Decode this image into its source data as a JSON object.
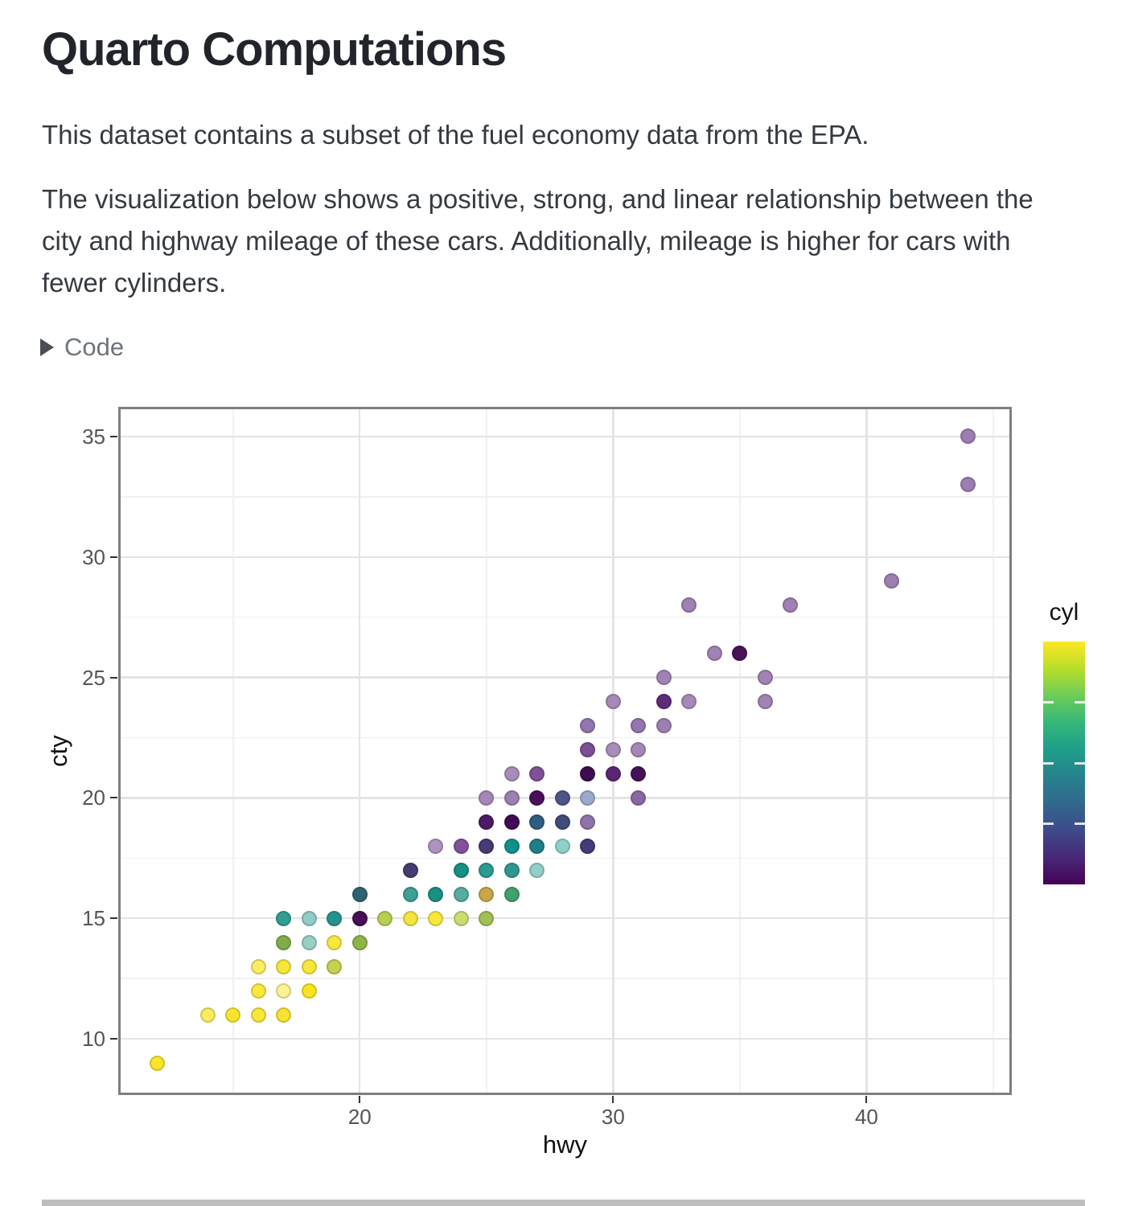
{
  "page": {
    "title": "Quarto Computations",
    "paragraph1": "This dataset contains a subset of the fuel economy data from the EPA.",
    "paragraph1_lines": [
      "This dataset contains a subset of the fuel economy data from the EPA."
    ],
    "paragraph2": "The visualization below shows a positive, strong, and linear relationship between the city and highway mileage of these cars. Additionally, mileage is higher for cars with fewer cylinders.",
    "paragraph2_lines": [
      "The visualization below shows a positive, strong, and linear relationship between the",
      "city and highway mileage of these cars. Additionally, mileage is higher for cars with",
      "fewer cylinders."
    ],
    "code_toggle": {
      "label": "Code",
      "state": "collapsed",
      "icon": "caret-right-icon"
    }
  },
  "colors": {
    "panel_border": "#7F7F7F",
    "grid_major": "#E4E4E4",
    "grid_minor": "#F1F1F1",
    "tick_mark": "#333333",
    "tick_label": "#555555",
    "axis_title": "#111111",
    "body_text": "#343A40",
    "muted_text": "#6E747B",
    "divider": "#BEBEBE",
    "viridis_low": "#440154",
    "viridis_high": "#FDE725"
  },
  "chart_data": {
    "type": "scatter",
    "title": "",
    "xlabel": "hwy",
    "ylabel": "cty",
    "grid": "on",
    "x_ticks": [
      20,
      30,
      40
    ],
    "y_ticks": [
      10,
      15,
      20,
      25,
      30,
      35
    ],
    "x_minor_ticks": [
      15,
      25,
      35,
      45
    ],
    "y_minor_ticks": [
      12.5,
      17.5,
      22.5,
      27.5,
      32.5
    ],
    "xlim": [
      10.5,
      45.7
    ],
    "ylim": [
      7.7,
      36.2
    ],
    "legend": {
      "title": "cyl",
      "type": "colorbar",
      "position": "right",
      "min": 4,
      "max": 8,
      "tick_values": [
        5,
        6,
        7
      ],
      "gradient_bottom_to_top": [
        "#440154",
        "#482878",
        "#3E4A89",
        "#31688E",
        "#26828E",
        "#1F9E89",
        "#35B779",
        "#6DCD59",
        "#B8DE29",
        "#FDE725"
      ]
    },
    "points": [
      {
        "hwy": 12,
        "cty": 9,
        "cyl": 8,
        "color": "#FAE52C"
      },
      {
        "hwy": 14,
        "cty": 11,
        "cyl": 8,
        "color": "#FAEB60"
      },
      {
        "hwy": 15,
        "cty": 11,
        "cyl": 8,
        "color": "#F9E52F"
      },
      {
        "hwy": 16,
        "cty": 11,
        "cyl": 8,
        "color": "#F9E63B"
      },
      {
        "hwy": 17,
        "cty": 11,
        "cyl": 8,
        "color": "#F7E232"
      },
      {
        "hwy": 16,
        "cty": 12,
        "cyl": 8,
        "color": "#FAE73E"
      },
      {
        "hwy": 17,
        "cty": 12,
        "cyl": 8,
        "color": "#FCF293"
      },
      {
        "hwy": 18,
        "cty": 12,
        "cyl": 8,
        "color": "#FAE41F"
      },
      {
        "hwy": 16,
        "cty": 13,
        "cyl": 8,
        "color": "#FAEC64"
      },
      {
        "hwy": 17,
        "cty": 13,
        "cyl": 8,
        "color": "#F7E63A"
      },
      {
        "hwy": 18,
        "cty": 13,
        "cyl": 8,
        "color": "#F7E63A"
      },
      {
        "hwy": 19,
        "cty": 13,
        "cyl": 8,
        "color": "#C6D24F"
      },
      {
        "hwy": 17,
        "cty": 14,
        "cyl": 6,
        "color": "#7FAE49"
      },
      {
        "hwy": 18,
        "cty": 14,
        "cyl": 6,
        "color": "#98CFC6"
      },
      {
        "hwy": 19,
        "cty": 14,
        "cyl": 8,
        "color": "#F8E73C"
      },
      {
        "hwy": 20,
        "cty": 14,
        "cyl": 8,
        "color": "#8DB446"
      },
      {
        "hwy": 17,
        "cty": 15,
        "cyl": 6,
        "color": "#2F9D92"
      },
      {
        "hwy": 18,
        "cty": 15,
        "cyl": 6,
        "color": "#90CCC3"
      },
      {
        "hwy": 19,
        "cty": 15,
        "cyl": 6,
        "color": "#23948B"
      },
      {
        "hwy": 20,
        "cty": 15,
        "cyl": 4,
        "color": "#470D58"
      },
      {
        "hwy": 21,
        "cty": 15,
        "cyl": 8,
        "color": "#B7CF52"
      },
      {
        "hwy": 22,
        "cty": 15,
        "cyl": 8,
        "color": "#F2E43C"
      },
      {
        "hwy": 23,
        "cty": 15,
        "cyl": 8,
        "color": "#F7E73B"
      },
      {
        "hwy": 24,
        "cty": 15,
        "cyl": 8,
        "color": "#CCDC72"
      },
      {
        "hwy": 25,
        "cty": 15,
        "cyl": 8,
        "color": "#A2BF55"
      },
      {
        "hwy": 20,
        "cty": 16,
        "cyl": 4,
        "color": "#2E6372"
      },
      {
        "hwy": 22,
        "cty": 16,
        "cyl": 6,
        "color": "#3DA093"
      },
      {
        "hwy": 23,
        "cty": 16,
        "cyl": 6,
        "color": "#189082"
      },
      {
        "hwy": 24,
        "cty": 16,
        "cyl": 6,
        "color": "#55ACA1"
      },
      {
        "hwy": 25,
        "cty": 16,
        "cyl": 8,
        "color": "#C9A747"
      },
      {
        "hwy": 26,
        "cty": 16,
        "cyl": 6,
        "color": "#3FA26B"
      },
      {
        "hwy": 22,
        "cty": 17,
        "cyl": 4,
        "color": "#463C74"
      },
      {
        "hwy": 24,
        "cty": 17,
        "cyl": 6,
        "color": "#169083"
      },
      {
        "hwy": 25,
        "cty": 17,
        "cyl": 6,
        "color": "#2B9A90"
      },
      {
        "hwy": 26,
        "cty": 17,
        "cyl": 6,
        "color": "#2E988E"
      },
      {
        "hwy": 27,
        "cty": 17,
        "cyl": 6,
        "color": "#93CEC7"
      },
      {
        "hwy": 23,
        "cty": 18,
        "cyl": 4,
        "color": "#AE93BE"
      },
      {
        "hwy": 24,
        "cty": 18,
        "cyl": 4,
        "color": "#83519A"
      },
      {
        "hwy": 25,
        "cty": 18,
        "cyl": 4,
        "color": "#473A75"
      },
      {
        "hwy": 26,
        "cty": 18,
        "cyl": 6,
        "color": "#12908A"
      },
      {
        "hwy": 27,
        "cty": 18,
        "cyl": 6,
        "color": "#1F7E86"
      },
      {
        "hwy": 28,
        "cty": 18,
        "cyl": 6,
        "color": "#8FD0CB"
      },
      {
        "hwy": 29,
        "cty": 18,
        "cyl": 4,
        "color": "#413D77"
      },
      {
        "hwy": 25,
        "cty": 19,
        "cyl": 4,
        "color": "#4D1A66"
      },
      {
        "hwy": 26,
        "cty": 19,
        "cyl": 4,
        "color": "#420B55"
      },
      {
        "hwy": 27,
        "cty": 19,
        "cyl": 5,
        "color": "#2F5E80"
      },
      {
        "hwy": 28,
        "cty": 19,
        "cyl": 5,
        "color": "#3F4C7C"
      },
      {
        "hwy": 29,
        "cty": 19,
        "cyl": 4,
        "color": "#8F74AA"
      },
      {
        "hwy": 25,
        "cty": 20,
        "cyl": 4,
        "color": "#A487B6"
      },
      {
        "hwy": 26,
        "cty": 20,
        "cyl": 4,
        "color": "#9C80B0"
      },
      {
        "hwy": 27,
        "cty": 20,
        "cyl": 4,
        "color": "#4A0E5A"
      },
      {
        "hwy": 28,
        "cty": 20,
        "cyl": 5,
        "color": "#4D5488"
      },
      {
        "hwy": 29,
        "cty": 20,
        "cyl": 5,
        "color": "#9BAACB"
      },
      {
        "hwy": 31,
        "cty": 20,
        "cyl": 4,
        "color": "#8A67A3"
      },
      {
        "hwy": 26,
        "cty": 21,
        "cyl": 4,
        "color": "#A98DB9"
      },
      {
        "hwy": 27,
        "cty": 21,
        "cyl": 4,
        "color": "#7F5298"
      },
      {
        "hwy": 29,
        "cty": 21,
        "cyl": 4,
        "color": "#400C50"
      },
      {
        "hwy": 30,
        "cty": 21,
        "cyl": 4,
        "color": "#5A2673"
      },
      {
        "hwy": 31,
        "cty": 21,
        "cyl": 4,
        "color": "#471159"
      },
      {
        "hwy": 29,
        "cty": 22,
        "cyl": 4,
        "color": "#7C4F95"
      },
      {
        "hwy": 30,
        "cty": 22,
        "cyl": 4,
        "color": "#A98DB9"
      },
      {
        "hwy": 31,
        "cty": 22,
        "cyl": 4,
        "color": "#A487B6"
      },
      {
        "hwy": 29,
        "cty": 23,
        "cyl": 4,
        "color": "#9476AE"
      },
      {
        "hwy": 31,
        "cty": 23,
        "cyl": 4,
        "color": "#9476AE"
      },
      {
        "hwy": 32,
        "cty": 23,
        "cyl": 4,
        "color": "#9C80B0"
      },
      {
        "hwy": 30,
        "cty": 24,
        "cyl": 4,
        "color": "#A689B7"
      },
      {
        "hwy": 32,
        "cty": 24,
        "cyl": 4,
        "color": "#5E2C78"
      },
      {
        "hwy": 33,
        "cty": 24,
        "cyl": 4,
        "color": "#A689B7"
      },
      {
        "hwy": 36,
        "cty": 24,
        "cyl": 4,
        "color": "#A083B3"
      },
      {
        "hwy": 32,
        "cty": 25,
        "cyl": 4,
        "color": "#A083B3"
      },
      {
        "hwy": 36,
        "cty": 25,
        "cyl": 4,
        "color": "#A083B3"
      },
      {
        "hwy": 34,
        "cty": 26,
        "cyl": 4,
        "color": "#A083B3"
      },
      {
        "hwy": 35,
        "cty": 26,
        "cyl": 4,
        "color": "#4A1259"
      },
      {
        "hwy": 33,
        "cty": 28,
        "cyl": 4,
        "color": "#9F81B3"
      },
      {
        "hwy": 37,
        "cty": 28,
        "cyl": 4,
        "color": "#9F81B3"
      },
      {
        "hwy": 41,
        "cty": 29,
        "cyl": 4,
        "color": "#9D80B0"
      },
      {
        "hwy": 44,
        "cty": 33,
        "cyl": 4,
        "color": "#9C7EB1"
      },
      {
        "hwy": 44,
        "cty": 35,
        "cyl": 4,
        "color": "#9C7EB1"
      }
    ]
  }
}
